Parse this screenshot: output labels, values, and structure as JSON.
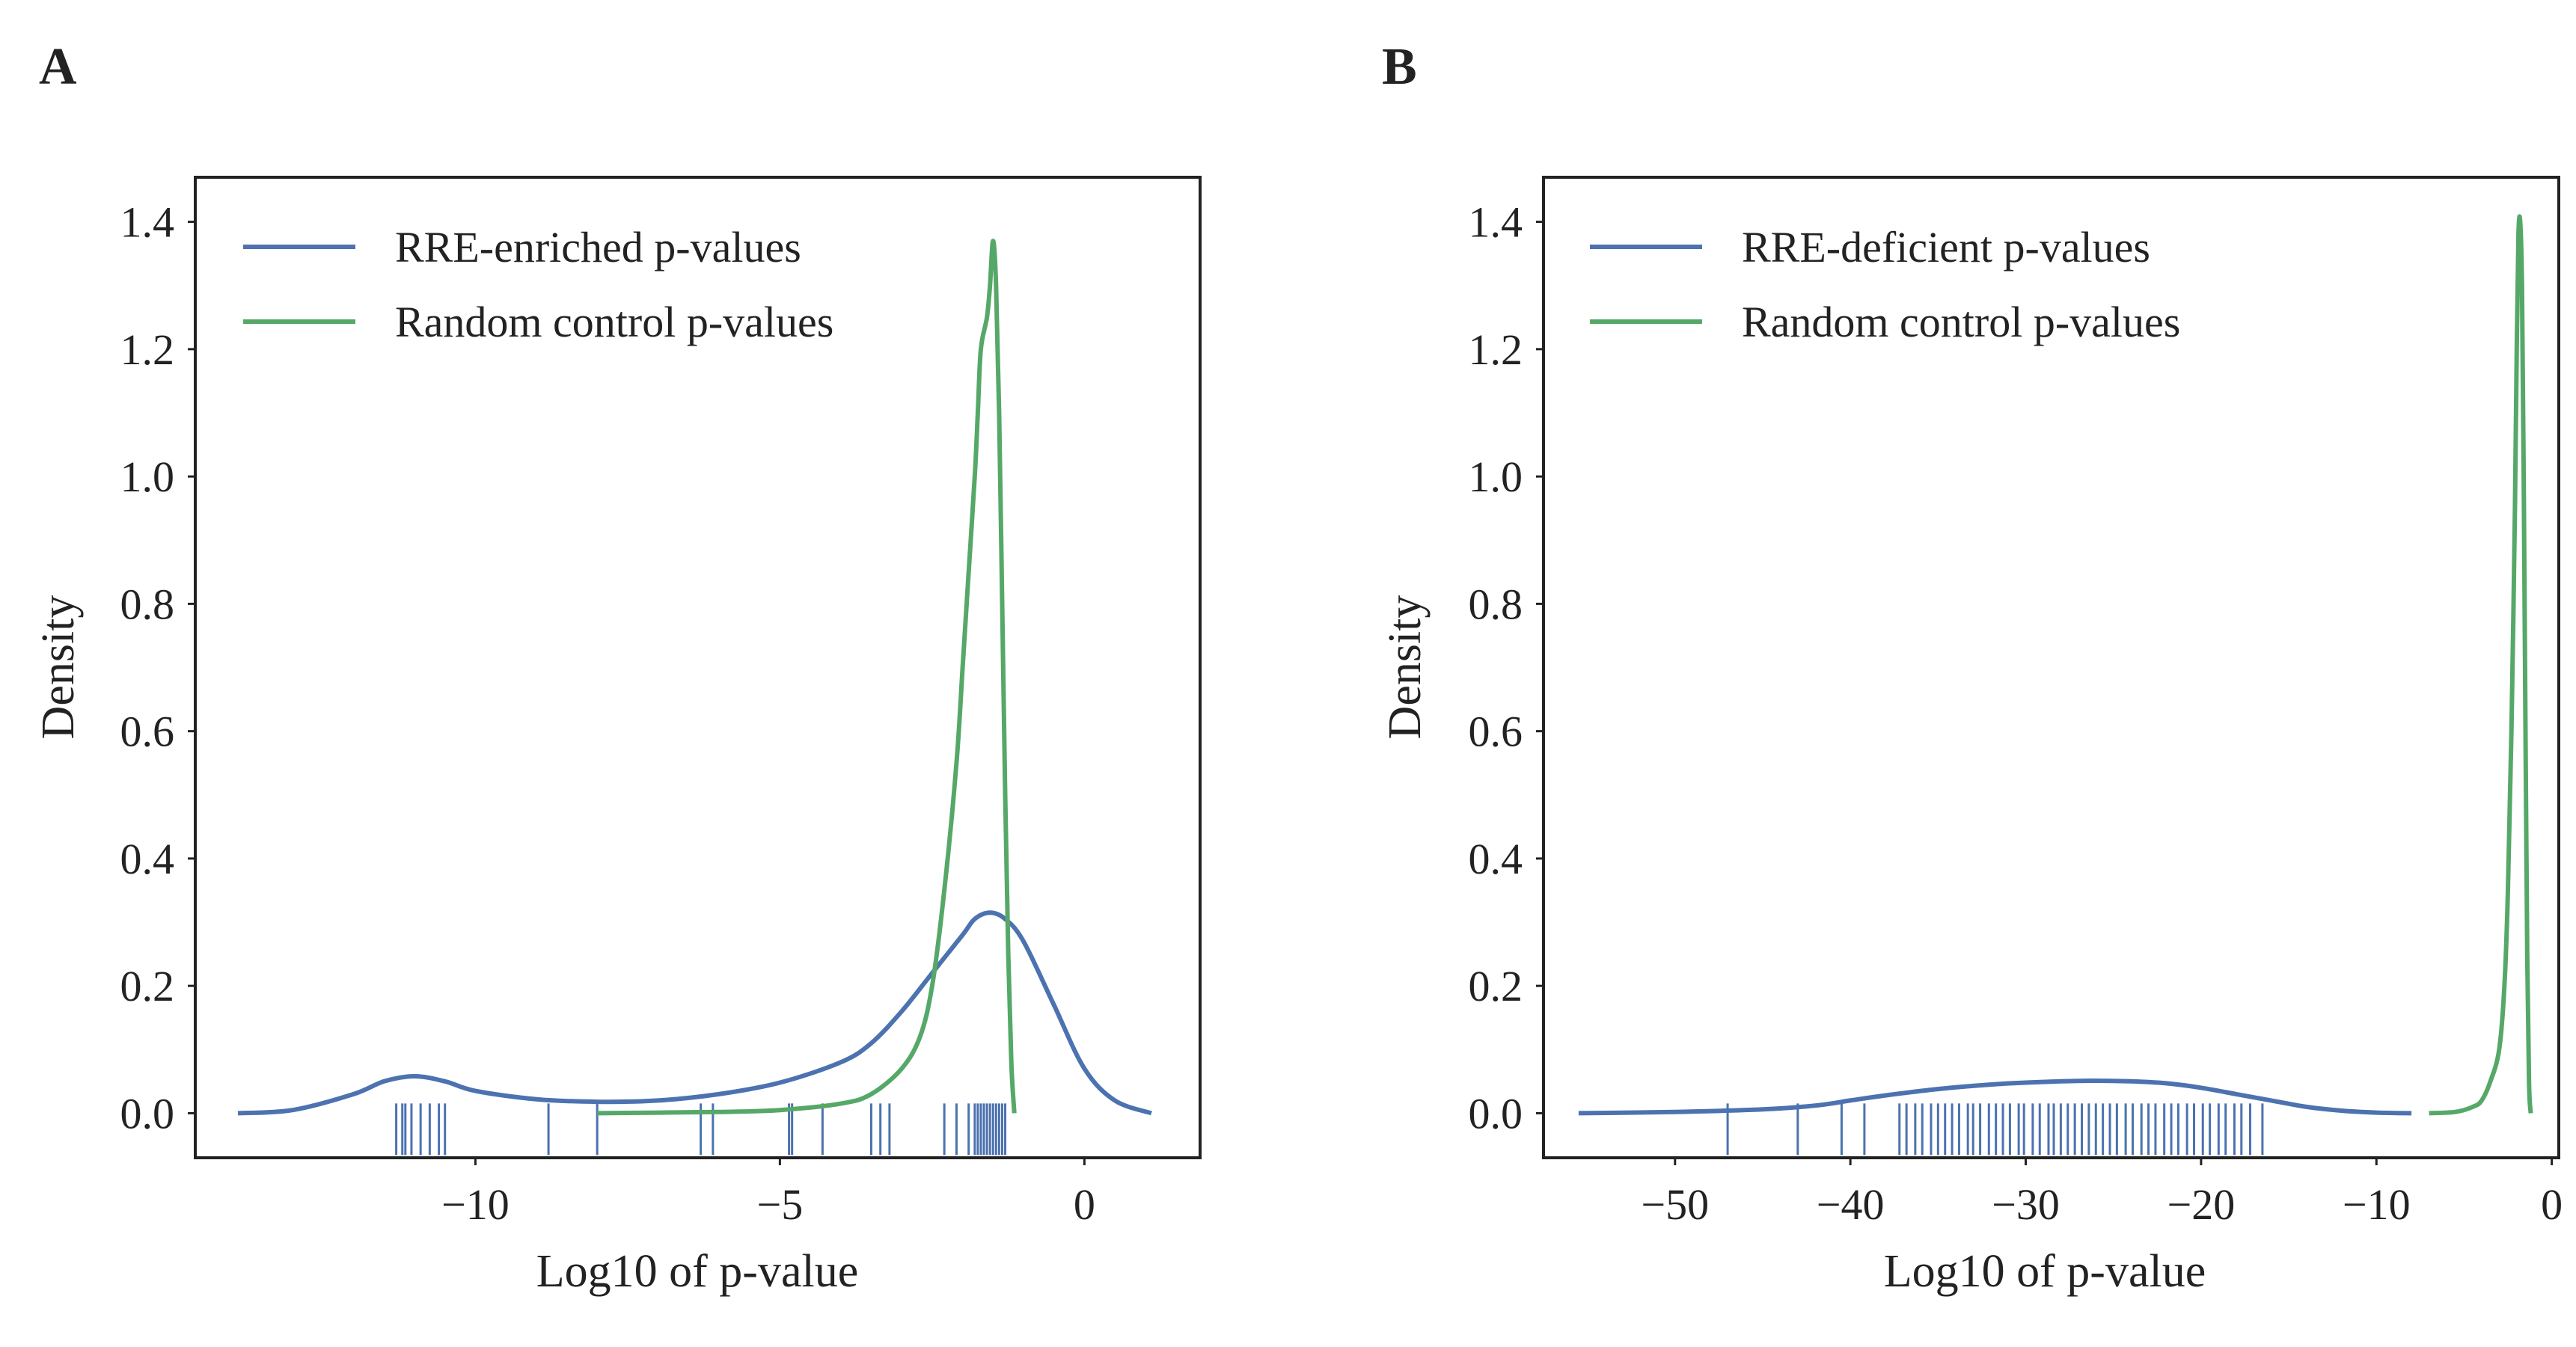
{
  "figure": {
    "panel_letters": [
      "A",
      "B"
    ]
  },
  "colors": {
    "blue": "#4c72b0",
    "green": "#55a868",
    "axis": "#222222",
    "text": "#222222"
  },
  "chart_data": [
    {
      "panel": "A",
      "type": "line",
      "title": "",
      "xlabel": "Log10 of p-value",
      "ylabel": "Density",
      "xlim": [
        -14.6,
        1.9
      ],
      "ylim": [
        -0.07,
        1.47
      ],
      "xticks": [
        -10,
        -5,
        0
      ],
      "xtick_labels": [
        "−10",
        "−5",
        "0"
      ],
      "yticks": [
        0.0,
        0.2,
        0.4,
        0.6,
        0.8,
        1.0,
        1.2,
        1.4
      ],
      "ytick_labels": [
        "0.0",
        "0.2",
        "0.4",
        "0.6",
        "0.8",
        "1.0",
        "1.2",
        "1.4"
      ],
      "legend_position": "top-left",
      "series": [
        {
          "name": "RRE-enriched p-values",
          "color": "#4c72b0",
          "kind": "kde",
          "x": [
            -13.9,
            -13,
            -12,
            -11.5,
            -11,
            -10.5,
            -10,
            -9,
            -8,
            -7,
            -6,
            -5,
            -4,
            -3.5,
            -3,
            -2.5,
            -2,
            -1.8,
            -1.55,
            -1.3,
            -1,
            -0.5,
            0,
            0.5,
            1.1
          ],
          "y": [
            0.0,
            0.005,
            0.03,
            0.05,
            0.058,
            0.05,
            0.035,
            0.022,
            0.018,
            0.02,
            0.03,
            0.048,
            0.08,
            0.11,
            0.16,
            0.22,
            0.28,
            0.305,
            0.315,
            0.305,
            0.27,
            0.17,
            0.07,
            0.02,
            0.0
          ]
        },
        {
          "name": "Random control p-values",
          "color": "#55a868",
          "kind": "kde",
          "x": [
            -8.0,
            -6,
            -5,
            -4,
            -3.5,
            -3,
            -2.7,
            -2.5,
            -2.3,
            -2.1,
            -2.0,
            -1.9,
            -1.8,
            -1.75,
            -1.7,
            -1.6,
            -1.55,
            -1.5,
            -1.45,
            -1.4,
            -1.35,
            -1.3,
            -1.25,
            -1.2,
            -1.15
          ],
          "y": [
            0.0,
            0.002,
            0.005,
            0.015,
            0.03,
            0.07,
            0.12,
            0.2,
            0.35,
            0.55,
            0.7,
            0.85,
            1.0,
            1.1,
            1.2,
            1.25,
            1.3,
            1.37,
            1.3,
            1.1,
            0.8,
            0.5,
            0.25,
            0.08,
            0.0
          ]
        }
      ],
      "rug": {
        "color": "#4c72b0",
        "x": [
          -11.3,
          -11.2,
          -11.15,
          -11.05,
          -10.9,
          -10.75,
          -10.6,
          -10.5,
          -8.8,
          -8.0,
          -6.3,
          -6.1,
          -4.85,
          -4.8,
          -4.3,
          -3.5,
          -3.35,
          -3.2,
          -2.3,
          -2.1,
          -1.9,
          -1.8,
          -1.75,
          -1.7,
          -1.65,
          -1.6,
          -1.55,
          -1.5,
          -1.45,
          -1.4,
          -1.35,
          -1.3
        ]
      }
    },
    {
      "panel": "B",
      "type": "line",
      "title": "",
      "xlabel": "Log10 of p-value",
      "ylabel": "Density",
      "xlim": [
        -57.5,
        0.4
      ],
      "ylim": [
        -0.07,
        1.47
      ],
      "xticks": [
        -50,
        -40,
        -30,
        -20,
        -10,
        0
      ],
      "xtick_labels": [
        "−50",
        "−40",
        "−30",
        "−20",
        "−10",
        "0"
      ],
      "yticks": [
        0.0,
        0.2,
        0.4,
        0.6,
        0.8,
        1.0,
        1.2,
        1.4
      ],
      "ytick_labels": [
        "0.0",
        "0.2",
        "0.4",
        "0.6",
        "0.8",
        "1.0",
        "1.2",
        "1.4"
      ],
      "legend_position": "top-left",
      "series": [
        {
          "name": "RRE-deficient p-values",
          "color": "#4c72b0",
          "kind": "kde",
          "x": [
            -55.5,
            -50,
            -45,
            -42,
            -40,
            -38,
            -35,
            -32,
            -30,
            -28,
            -26,
            -24,
            -22,
            -20,
            -18,
            -16,
            -14,
            -12,
            -10,
            -8
          ],
          "y": [
            0.0,
            0.002,
            0.006,
            0.012,
            0.02,
            0.028,
            0.038,
            0.045,
            0.048,
            0.05,
            0.051,
            0.05,
            0.047,
            0.04,
            0.03,
            0.02,
            0.01,
            0.004,
            0.001,
            0.0
          ]
        },
        {
          "name": "Random control p-values",
          "color": "#55a868",
          "kind": "kde",
          "x": [
            -7.0,
            -5.5,
            -4.5,
            -4.0,
            -3.5,
            -3.0,
            -2.7,
            -2.5,
            -2.3,
            -2.1,
            -2.0,
            -1.9,
            -1.8,
            -1.7,
            -1.6,
            -1.5,
            -1.4,
            -1.3,
            -1.2
          ],
          "y": [
            0.0,
            0.002,
            0.01,
            0.02,
            0.05,
            0.1,
            0.2,
            0.35,
            0.6,
            0.95,
            1.2,
            1.38,
            1.4,
            1.3,
            1.0,
            0.6,
            0.25,
            0.05,
            0.0
          ]
        }
      ],
      "rug": {
        "color": "#4c72b0",
        "x": [
          -47,
          -43,
          -40.5,
          -39.2,
          -37.2,
          -36.8,
          -36.3,
          -35.9,
          -35.4,
          -35.0,
          -34.6,
          -34.2,
          -33.8,
          -33.3,
          -33.0,
          -32.6,
          -32.1,
          -31.7,
          -31.3,
          -30.9,
          -30.4,
          -30.1,
          -29.6,
          -29.2,
          -28.7,
          -28.4,
          -28.0,
          -27.6,
          -27.2,
          -26.8,
          -26.4,
          -26.0,
          -25.6,
          -25.2,
          -24.8,
          -24.3,
          -23.9,
          -23.4,
          -23.0,
          -22.6,
          -22.1,
          -21.7,
          -21.3,
          -20.8,
          -20.4,
          -19.9,
          -19.5,
          -19.0,
          -18.6,
          -18.1,
          -17.7,
          -17.2,
          -16.5
        ]
      }
    }
  ]
}
